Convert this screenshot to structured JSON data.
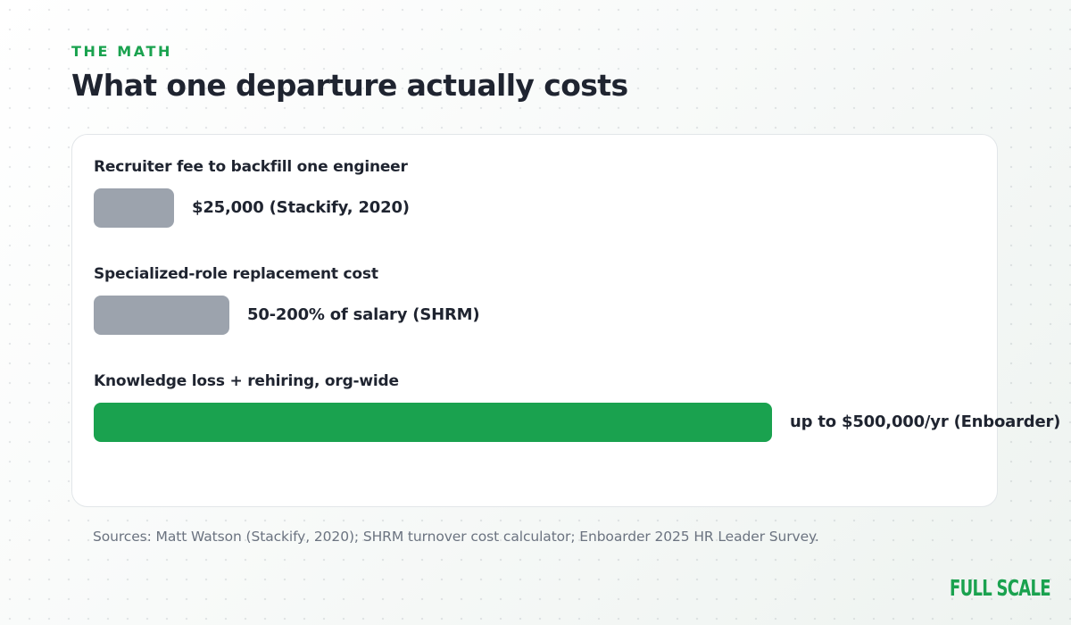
{
  "header": {
    "eyebrow": "THE MATH",
    "title": "What one departure actually costs"
  },
  "chart_data": {
    "type": "bar",
    "orientation": "horizontal",
    "categories": [
      "Recruiter fee to backfill one engineer",
      "Specialized-role replacement cost",
      "Knowledge loss + rehiring, org-wide"
    ],
    "bar_labels": [
      "$25,000 (Stackify, 2020)",
      "50-200% of salary (SHRM)",
      "up to $500,000/yr (Enboarder)"
    ],
    "values": [
      0.118,
      0.2,
      1.0
    ],
    "colors": [
      "#9ca3ad",
      "#9ca3ad",
      "#1aa24f"
    ],
    "grid": false
  },
  "footer": {
    "sources": "Sources: Matt Watson (Stackify, 2020); SHRM turnover cost calculator; Enboarder 2025 HR Leader Survey.",
    "brand": "FULL SCALE"
  }
}
